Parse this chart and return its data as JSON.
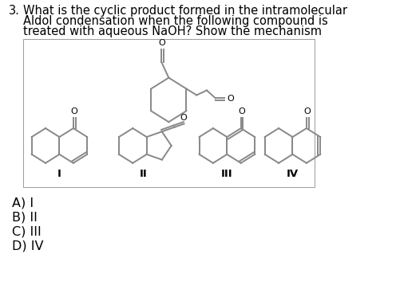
{
  "background_color": "#ffffff",
  "question_number": "3.",
  "question_text_line1": "What is the cyclic product formed in the intramolecular",
  "question_text_line2": "Aldol condensation when the following compound is",
  "question_text_line3": "treated with aqueous NaOH? Show the mechanism",
  "choices": [
    "A) I",
    "B) II",
    "C) III",
    "D) IV"
  ],
  "roman_labels": [
    "I",
    "II",
    "III",
    "IV"
  ],
  "title_fontsize": 10.5,
  "choice_fontsize": 11.5,
  "label_fontsize": 9.5,
  "fig_width": 5.01,
  "fig_height": 3.58,
  "dpi": 100,
  "structure_color": "#888888",
  "line_width": 1.4
}
